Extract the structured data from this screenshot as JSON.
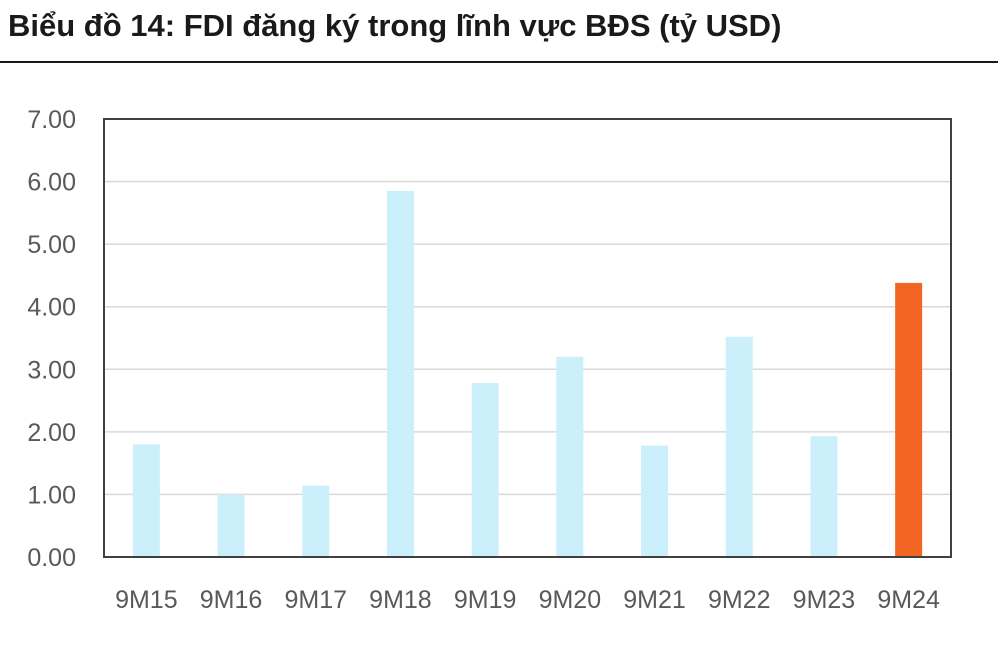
{
  "title": "Biểu đồ 14: FDI đăng ký trong lĩnh vực BĐS (tỷ USD)",
  "chart_data": {
    "type": "bar",
    "title": "Biểu đồ 14: FDI đăng ký trong lĩnh vực BĐS (tỷ USD)",
    "xlabel": "",
    "ylabel": "",
    "categories": [
      "9M15",
      "9M16",
      "9M17",
      "9M18",
      "9M19",
      "9M20",
      "9M21",
      "9M22",
      "9M23",
      "9M24"
    ],
    "values": [
      1.8,
      1.0,
      1.14,
      5.85,
      2.78,
      3.2,
      1.78,
      3.52,
      1.93,
      4.38
    ],
    "ylim": [
      0,
      7
    ],
    "yticks": [
      "0.00",
      "1.00",
      "2.00",
      "3.00",
      "4.00",
      "5.00",
      "6.00",
      "7.00"
    ],
    "grid": true,
    "legend": "none",
    "colors": {
      "default": "#CCEFFC",
      "highlight": "#F26522",
      "highlight_category": "9M24",
      "grid": "#D9D9D9",
      "axis": "#404040",
      "text": "#595959"
    }
  }
}
